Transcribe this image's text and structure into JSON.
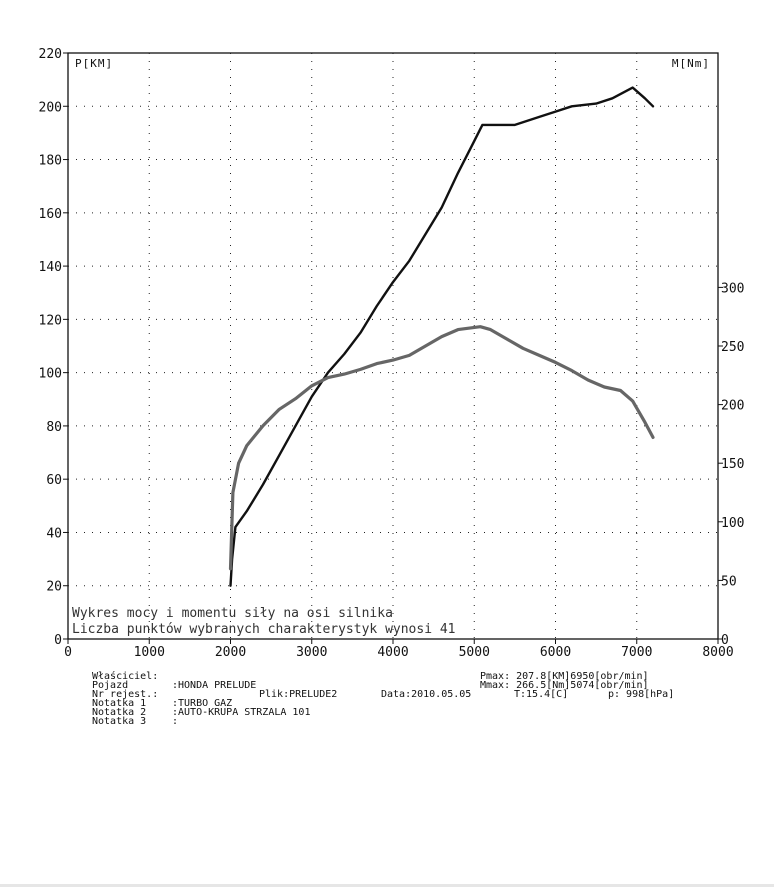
{
  "chart_data": {
    "type": "line",
    "x_axis": {
      "ticks": [
        0,
        1000,
        2000,
        3000,
        4000,
        5000,
        6000,
        7000,
        8000
      ],
      "range": [
        0,
        8000
      ]
    },
    "y_left": {
      "title": "P[KM]",
      "ticks": [
        0,
        20,
        40,
        60,
        80,
        100,
        120,
        140,
        160,
        180,
        200,
        220
      ],
      "range": [
        0,
        220
      ]
    },
    "y_right": {
      "title": "M[Nm]",
      "ticks": [
        0,
        50,
        100,
        150,
        200,
        250,
        300
      ],
      "range": [
        0,
        500
      ]
    },
    "grid": true,
    "notes": [
      "Wykres mocy i momentu siły na osi silnika",
      "Liczba punktów wybranych charakterystyk wynosi 41"
    ],
    "series": [
      {
        "axis": "left",
        "color": "#111111",
        "points": [
          [
            2000,
            20
          ],
          [
            2020,
            30
          ],
          [
            2060,
            42
          ],
          [
            2200,
            48
          ],
          [
            2400,
            58
          ],
          [
            2600,
            69
          ],
          [
            2800,
            80
          ],
          [
            3000,
            91
          ],
          [
            3200,
            100
          ],
          [
            3400,
            107
          ],
          [
            3600,
            115
          ],
          [
            3800,
            125
          ],
          [
            4000,
            134
          ],
          [
            4200,
            142
          ],
          [
            4400,
            152
          ],
          [
            4600,
            162
          ],
          [
            4800,
            175
          ],
          [
            5000,
            187
          ],
          [
            5100,
            193
          ],
          [
            5300,
            193
          ],
          [
            5500,
            193
          ],
          [
            5800,
            196
          ],
          [
            6000,
            198
          ],
          [
            6200,
            200
          ],
          [
            6500,
            201
          ],
          [
            6700,
            203
          ],
          [
            6950,
            207
          ],
          [
            7100,
            203
          ],
          [
            7200,
            200
          ]
        ]
      },
      {
        "axis": "right",
        "color": "#666666",
        "points": [
          [
            2000,
            60
          ],
          [
            2030,
            125
          ],
          [
            2100,
            150
          ],
          [
            2200,
            165
          ],
          [
            2400,
            182
          ],
          [
            2600,
            196
          ],
          [
            2800,
            205
          ],
          [
            3000,
            216
          ],
          [
            3200,
            223
          ],
          [
            3400,
            226
          ],
          [
            3600,
            230
          ],
          [
            3800,
            235
          ],
          [
            4000,
            238
          ],
          [
            4200,
            242
          ],
          [
            4400,
            250
          ],
          [
            4600,
            258
          ],
          [
            4800,
            264
          ],
          [
            5074,
            266.5
          ],
          [
            5200,
            264
          ],
          [
            5400,
            256
          ],
          [
            5600,
            248
          ],
          [
            5800,
            242
          ],
          [
            6000,
            236
          ],
          [
            6200,
            229
          ],
          [
            6400,
            221
          ],
          [
            6600,
            215
          ],
          [
            6800,
            212
          ],
          [
            6950,
            203
          ],
          [
            7100,
            185
          ],
          [
            7200,
            172
          ]
        ]
      }
    ]
  },
  "info": {
    "owner_label": "Właściciel:",
    "owner_value": "",
    "vehicle_label": "Pojazd",
    "vehicle_value": ":HONDA PRELUDE",
    "reg_label": "Nr rejest.:",
    "file_text": "Plik:PRELUDE2",
    "date_text": "Data:2010.05.05",
    "temp_text": "T:15.4[C]",
    "pressure_text": "p: 998[hPa]",
    "pmax_text": "Pmax: 207.8[KM]6950[obr/min]",
    "mmax_text": "Mmax: 266.5[Nm]5074[obr/min]",
    "note1_label": "Notatka 1",
    "note1_value": ":TURBO GAZ",
    "note2_label": "Notatka 2",
    "note2_value": ":AUTO-KRUPA STRZALA 101",
    "note3_label": "Notatka 3",
    "note3_value": ":"
  }
}
